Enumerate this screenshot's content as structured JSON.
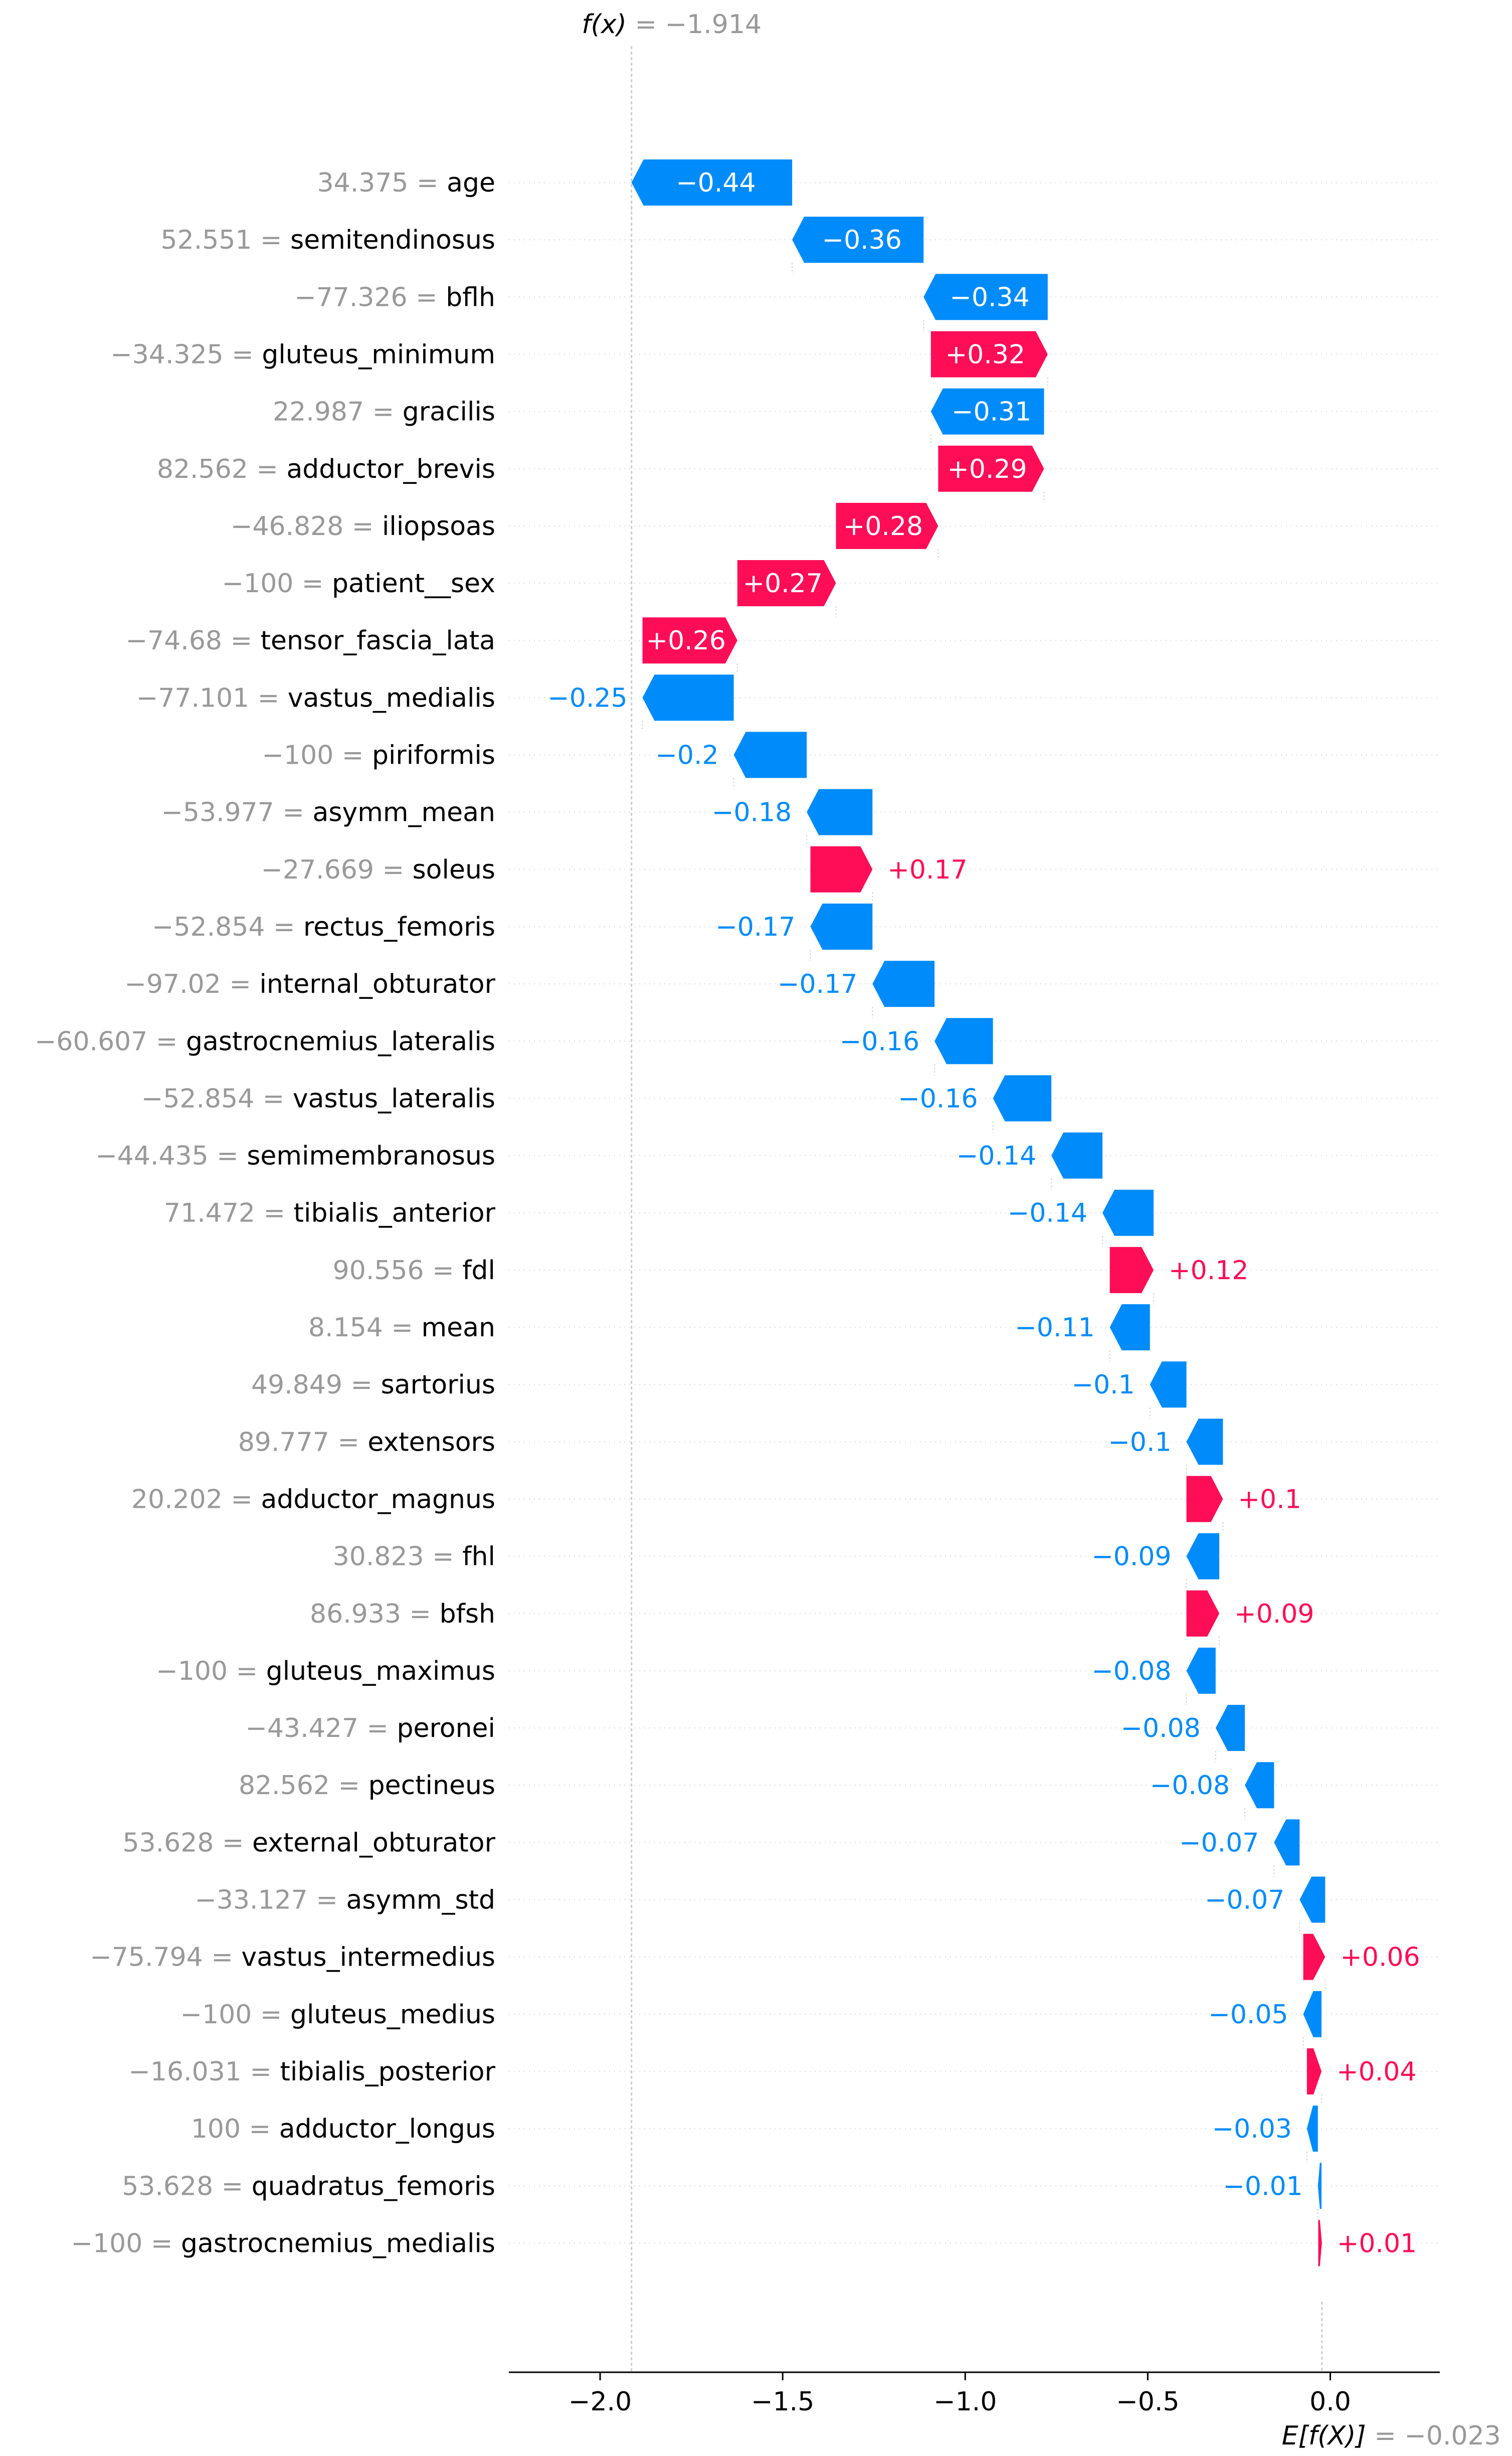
{
  "chart_data": {
    "type": "waterfall",
    "fx_label": "f(x)",
    "fx_value_text": " = −1.914",
    "fx_value": -1.914,
    "ex_label": "E[f(X)]",
    "ex_value_text": " = −0.023",
    "ex_value": -0.023,
    "xlim": [
      -2.25,
      0.3
    ],
    "xticks": [
      {
        "value": -2.0,
        "label": "−2.0"
      },
      {
        "value": -1.5,
        "label": "−1.5"
      },
      {
        "value": -1.0,
        "label": "−1.0"
      },
      {
        "value": -0.5,
        "label": "−0.5"
      },
      {
        "value": 0.0,
        "label": "0.0"
      }
    ],
    "features": [
      {
        "value": "34.375",
        "name": "age",
        "start": -1.474,
        "shap": -0.44,
        "label": "−0.44"
      },
      {
        "value": "52.551",
        "name": "semitendinosus",
        "start": -1.114,
        "shap": -0.36,
        "label": "−0.36"
      },
      {
        "value": "−77.326",
        "name": "bflh",
        "start": -0.774,
        "shap": -0.34,
        "label": "−0.34"
      },
      {
        "value": "−34.325",
        "name": "gluteus_minimum",
        "start": -1.094,
        "shap": 0.32,
        "label": "+0.32"
      },
      {
        "value": "22.987",
        "name": "gracilis",
        "start": -0.784,
        "shap": -0.31,
        "label": "−0.31"
      },
      {
        "value": "82.562",
        "name": "adductor_brevis",
        "start": -1.074,
        "shap": 0.29,
        "label": "+0.29"
      },
      {
        "value": "−46.828",
        "name": "iliopsoas",
        "start": -1.354,
        "shap": 0.28,
        "label": "+0.28"
      },
      {
        "value": "−100",
        "name": "patient__sex",
        "start": -1.624,
        "shap": 0.27,
        "label": "+0.27"
      },
      {
        "value": "−74.68",
        "name": "tensor_fascia_lata",
        "start": -1.884,
        "shap": 0.26,
        "label": "+0.26"
      },
      {
        "value": "−77.101",
        "name": "vastus_medialis",
        "start": -1.634,
        "shap": -0.25,
        "label": "−0.25"
      },
      {
        "value": "−100",
        "name": "piriformis",
        "start": -1.434,
        "shap": -0.2,
        "label": "−0.2"
      },
      {
        "value": "−53.977",
        "name": "asymm_mean",
        "start": -1.254,
        "shap": -0.18,
        "label": "−0.18"
      },
      {
        "value": "−27.669",
        "name": "soleus",
        "start": -1.424,
        "shap": 0.17,
        "label": "+0.17"
      },
      {
        "value": "−52.854",
        "name": "rectus_femoris",
        "start": -1.254,
        "shap": -0.17,
        "label": "−0.17"
      },
      {
        "value": "−97.02",
        "name": "internal_obturator",
        "start": -1.084,
        "shap": -0.17,
        "label": "−0.17"
      },
      {
        "value": "−60.607",
        "name": "gastrocnemius_lateralis",
        "start": -0.924,
        "shap": -0.16,
        "label": "−0.16"
      },
      {
        "value": "−52.854",
        "name": "vastus_lateralis",
        "start": -0.764,
        "shap": -0.16,
        "label": "−0.16"
      },
      {
        "value": "−44.435",
        "name": "semimembranosus",
        "start": -0.624,
        "shap": -0.14,
        "label": "−0.14"
      },
      {
        "value": "71.472",
        "name": "tibialis_anterior",
        "start": -0.484,
        "shap": -0.14,
        "label": "−0.14"
      },
      {
        "value": "90.556",
        "name": "fdl",
        "start": -0.604,
        "shap": 0.12,
        "label": "+0.12"
      },
      {
        "value": "8.154",
        "name": "mean",
        "start": -0.494,
        "shap": -0.11,
        "label": "−0.11"
      },
      {
        "value": "49.849",
        "name": "sartorius",
        "start": -0.394,
        "shap": -0.1,
        "label": "−0.1"
      },
      {
        "value": "89.777",
        "name": "extensors",
        "start": -0.294,
        "shap": -0.1,
        "label": "−0.1"
      },
      {
        "value": "20.202",
        "name": "adductor_magnus",
        "start": -0.394,
        "shap": 0.1,
        "label": "+0.1"
      },
      {
        "value": "30.823",
        "name": "fhl",
        "start": -0.304,
        "shap": -0.09,
        "label": "−0.09"
      },
      {
        "value": "86.933",
        "name": "bfsh",
        "start": -0.394,
        "shap": 0.09,
        "label": "+0.09"
      },
      {
        "value": "−100",
        "name": "gluteus_maximus",
        "start": -0.314,
        "shap": -0.08,
        "label": "−0.08"
      },
      {
        "value": "−43.427",
        "name": "peronei",
        "start": -0.234,
        "shap": -0.08,
        "label": "−0.08"
      },
      {
        "value": "82.562",
        "name": "pectineus",
        "start": -0.154,
        "shap": -0.08,
        "label": "−0.08"
      },
      {
        "value": "53.628",
        "name": "external_obturator",
        "start": -0.084,
        "shap": -0.07,
        "label": "−0.07"
      },
      {
        "value": "−33.127",
        "name": "asymm_std",
        "start": -0.014,
        "shap": -0.07,
        "label": "−0.07"
      },
      {
        "value": "−75.794",
        "name": "vastus_intermedius",
        "start": -0.074,
        "shap": 0.06,
        "label": "+0.06"
      },
      {
        "value": "−100",
        "name": "gluteus_medius",
        "start": -0.024,
        "shap": -0.05,
        "label": "−0.05"
      },
      {
        "value": "−16.031",
        "name": "tibialis_posterior",
        "start": -0.064,
        "shap": 0.04,
        "label": "+0.04"
      },
      {
        "value": "100",
        "name": "adductor_longus",
        "start": -0.034,
        "shap": -0.03,
        "label": "−0.03"
      },
      {
        "value": "53.628",
        "name": "quadratus_femoris",
        "start": -0.024,
        "shap": -0.01,
        "label": "−0.01"
      },
      {
        "value": "−100",
        "name": "gastrocnemius_medialis",
        "start": -0.033,
        "shap": 0.01,
        "label": "+0.01"
      }
    ],
    "colors": {
      "positive": "#ff0d57",
      "negative": "#008bfb",
      "feature_value": "#999999",
      "feature_name": "#000000",
      "gridline": "#cccccc",
      "axis": "#000000",
      "inside_label": "#ffffff"
    }
  }
}
